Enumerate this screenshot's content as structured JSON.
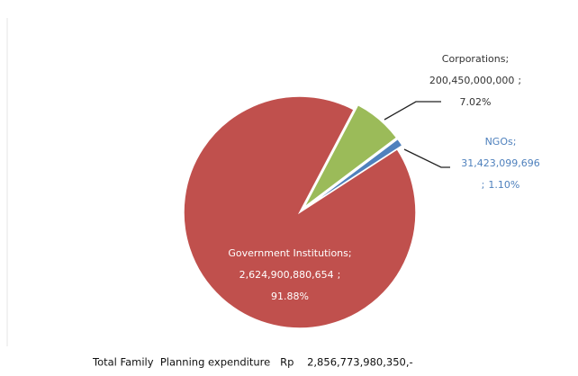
{
  "chart_data": {
    "type": "pie",
    "categories": [
      "Government Institutions",
      "Corporations",
      "NGOs"
    ],
    "values": [
      2624900880654,
      200450000000,
      31423099696
    ],
    "value_labels": [
      "2,624,900,880,654",
      "200,450,000,000",
      "31,423,099,696"
    ],
    "percents": [
      91.88,
      7.02,
      1.1
    ],
    "percent_labels": [
      "91.88%",
      "7.02%",
      "1.10%"
    ],
    "separator": ";",
    "colors": [
      "#c0504d",
      "#9bbb59",
      "#4f81bd"
    ],
    "label_colors": [
      "#ffffff",
      "#333333",
      "#4f81bd"
    ],
    "footer": "Total Family  Planning expenditure   Rp    2,856,773,980,350,-"
  }
}
